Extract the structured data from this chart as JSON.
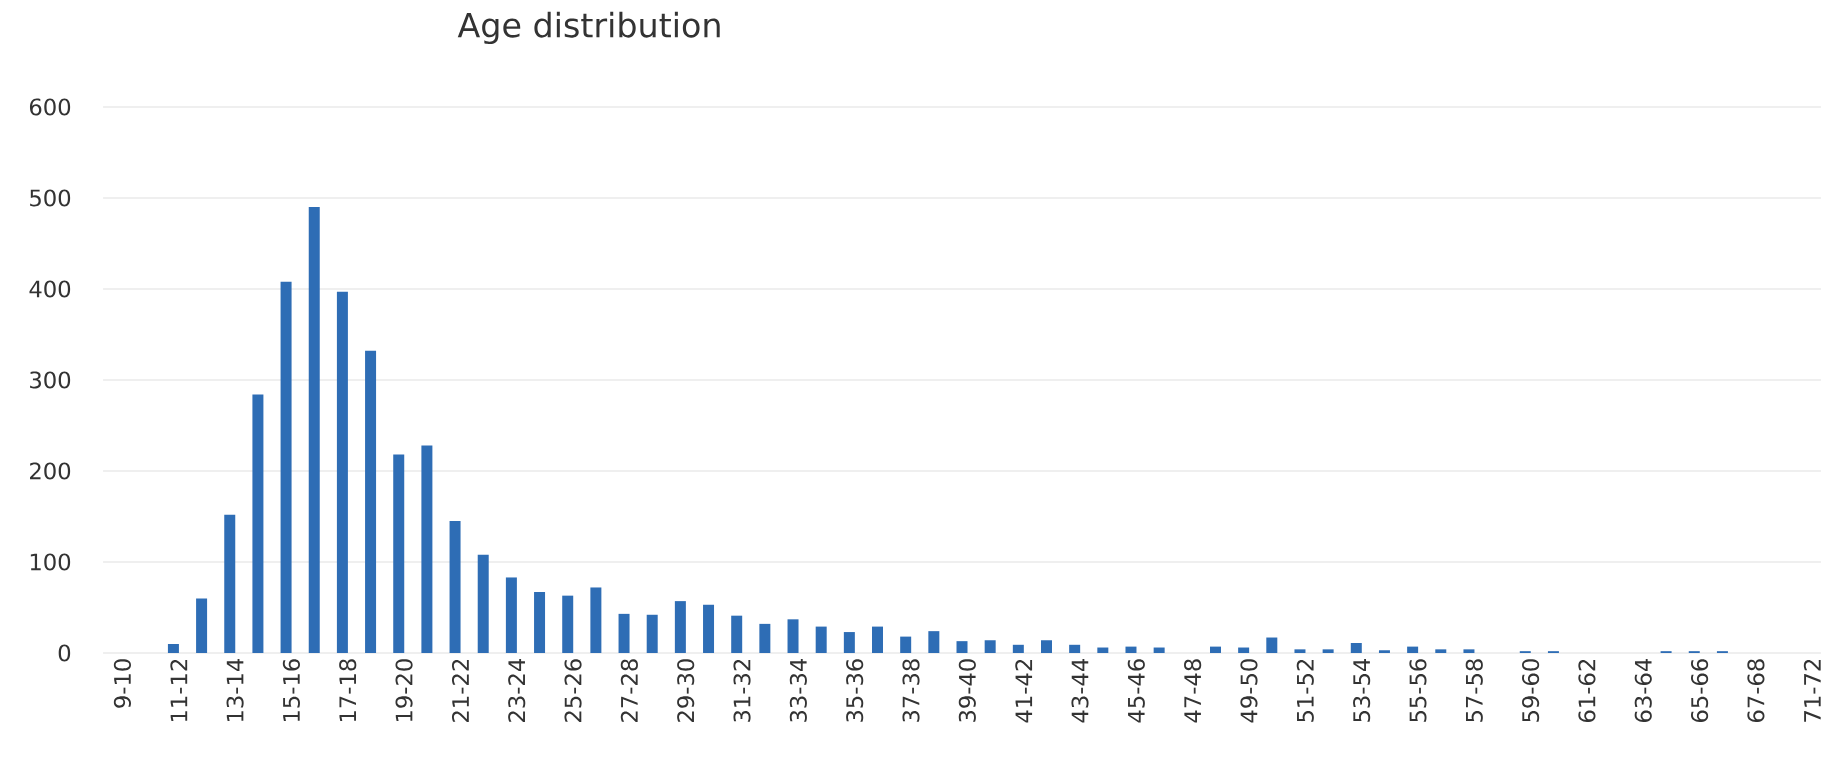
{
  "chart_data": {
    "type": "bar",
    "title": "Age distribution",
    "categories": [
      "9-10",
      null,
      "11-12",
      null,
      "13-14",
      null,
      "15-16",
      null,
      "17-18",
      null,
      "19-20",
      null,
      "21-22",
      null,
      "23-24",
      null,
      "25-26",
      null,
      "27-28",
      null,
      "29-30",
      null,
      "31-32",
      null,
      "33-34",
      null,
      "35-36",
      null,
      "37-38",
      null,
      "39-40",
      null,
      "41-42",
      null,
      "43-44",
      null,
      "45-46",
      null,
      "47-48",
      null,
      "49-50",
      null,
      "51-52",
      null,
      "53-54",
      null,
      "55-56",
      null,
      "57-58",
      null,
      "59-60",
      null,
      "61-62",
      null,
      "63-64",
      null,
      "65-66",
      null,
      "67-68",
      null,
      "71-72"
    ],
    "values": [
      0,
      0,
      10,
      60,
      152,
      284,
      408,
      490,
      397,
      332,
      218,
      228,
      145,
      108,
      83,
      67,
      63,
      72,
      43,
      42,
      57,
      53,
      41,
      32,
      37,
      29,
      23,
      29,
      18,
      24,
      13,
      14,
      9,
      14,
      9,
      6,
      7,
      6,
      0,
      7,
      6,
      17,
      4,
      4,
      11,
      3,
      7,
      4,
      4,
      0,
      2,
      2,
      0,
      0,
      0,
      2,
      2,
      2,
      0,
      0,
      0
    ],
    "color": "#2e6db5",
    "ylim": [
      0,
      600
    ],
    "yticks": [
      0,
      100,
      200,
      300,
      400,
      500,
      600
    ],
    "grid": "y"
  }
}
